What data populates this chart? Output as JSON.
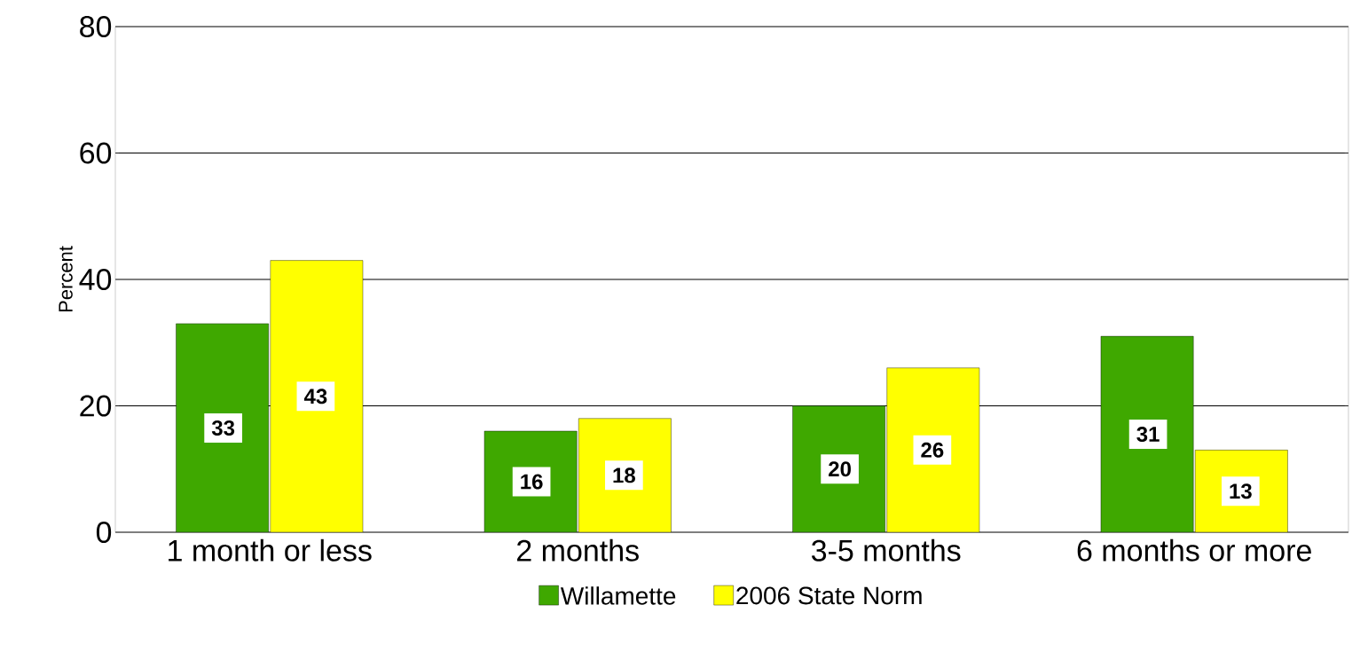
{
  "chart_data": {
    "type": "bar",
    "ylabel": "Percent",
    "categories": [
      "1 month or less",
      "2 months",
      "3-5 months",
      "6 months or more"
    ],
    "series": [
      {
        "name": "Willamette",
        "color": "#3fa800",
        "values": [
          33,
          16,
          20,
          31
        ]
      },
      {
        "name": "2006 State Norm",
        "color": "#ffff00",
        "values": [
          43,
          18,
          26,
          13
        ]
      }
    ],
    "ylim": [
      0,
      80
    ],
    "yticks": [
      0,
      20,
      40,
      60,
      80
    ],
    "grid": "y",
    "legend": "bottom",
    "data_labels": true
  }
}
